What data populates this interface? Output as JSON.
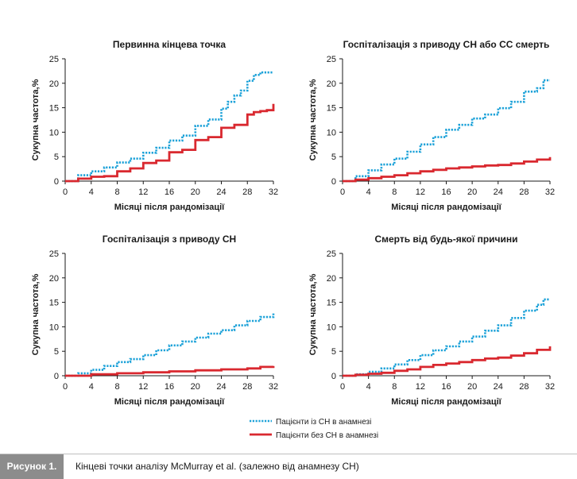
{
  "colors": {
    "with_hf": "#1ba1d8",
    "without_hf": "#d9282f",
    "axis": "#1a1a1a",
    "caption_bg": "#8c8c8c"
  },
  "legend": {
    "with_hf": "Пацієнти із СН в анамнезі",
    "without_hf": "Пацієнти без СН в анамнезі"
  },
  "caption": {
    "label": "Рисунок 1.",
    "text": "Кінцеві точки аналізу McMurray et al. (залежно від анамнезу СН)"
  },
  "chart_data": [
    {
      "type": "line",
      "title": "Первинна кінцева точка",
      "xlabel": "Місяці після рандомізації",
      "ylabel": "Сукупна частота,%",
      "xlim": [
        0,
        32
      ],
      "ylim": [
        0,
        25
      ],
      "xticks": [
        0,
        4,
        8,
        12,
        16,
        20,
        24,
        28,
        32
      ],
      "yticks": [
        0,
        5,
        10,
        15,
        20,
        25
      ],
      "series": [
        {
          "name": "Пацієнти із СН в анамнезі",
          "style": "dotted",
          "x": [
            0,
            2,
            4,
            6,
            8,
            10,
            12,
            14,
            16,
            18,
            20,
            22,
            24,
            25,
            26,
            27,
            28,
            29,
            30,
            32
          ],
          "y": [
            0,
            1.2,
            2.0,
            2.8,
            3.8,
            4.6,
            5.8,
            6.8,
            8.3,
            9.3,
            11.3,
            12.6,
            14.8,
            16.2,
            17.5,
            18.5,
            20.5,
            21.7,
            22.2,
            22.2
          ]
        },
        {
          "name": "Пацієнти без СН в анамнезі",
          "style": "solid",
          "x": [
            0,
            2,
            4,
            6,
            8,
            10,
            12,
            14,
            16,
            18,
            20,
            22,
            24,
            26,
            28,
            29,
            30,
            31,
            32
          ],
          "y": [
            0,
            0.5,
            0.9,
            1.0,
            2.0,
            2.6,
            3.7,
            4.2,
            5.9,
            6.4,
            8.4,
            9.0,
            10.9,
            11.5,
            13.6,
            14.1,
            14.3,
            14.5,
            15.8
          ]
        }
      ]
    },
    {
      "type": "line",
      "title": "Госпіталізація з приводу СН або СС смерть",
      "xlabel": "Місяці після рандомізації",
      "ylabel": "Сукупна частота,%",
      "xlim": [
        0,
        32
      ],
      "ylim": [
        0,
        25
      ],
      "xticks": [
        0,
        4,
        8,
        12,
        16,
        20,
        24,
        28,
        32
      ],
      "yticks": [
        0,
        5,
        10,
        15,
        20,
        25
      ],
      "series": [
        {
          "name": "Пацієнти із СН в анамнезі",
          "style": "dotted",
          "x": [
            0,
            2,
            4,
            6,
            8,
            10,
            12,
            14,
            16,
            18,
            20,
            22,
            24,
            26,
            28,
            30,
            31,
            32
          ],
          "y": [
            0,
            1.0,
            2.2,
            3.4,
            4.6,
            6.0,
            7.5,
            9.0,
            10.5,
            11.5,
            12.8,
            13.6,
            14.9,
            16.2,
            18.3,
            19.0,
            20.6,
            20.6
          ]
        },
        {
          "name": "Пацієнти без СН в анамнезі",
          "style": "solid",
          "x": [
            0,
            2,
            4,
            6,
            8,
            10,
            12,
            14,
            16,
            18,
            20,
            22,
            24,
            26,
            28,
            30,
            32
          ],
          "y": [
            0,
            0.3,
            0.6,
            0.9,
            1.2,
            1.6,
            2.0,
            2.3,
            2.6,
            2.8,
            3.0,
            3.2,
            3.3,
            3.6,
            4.0,
            4.4,
            4.9
          ]
        }
      ]
    },
    {
      "type": "line",
      "title": "Госпіталізація з приводу СН",
      "xlabel": "Місяці після рандомізації",
      "ylabel": "Сукупна частота,%",
      "xlim": [
        0,
        32
      ],
      "ylim": [
        0,
        25
      ],
      "xticks": [
        0,
        4,
        8,
        12,
        16,
        20,
        24,
        28,
        32
      ],
      "yticks": [
        0,
        5,
        10,
        15,
        20,
        25
      ],
      "series": [
        {
          "name": "Пацієнти із СН в анамнезі",
          "style": "dotted",
          "x": [
            0,
            2,
            4,
            6,
            8,
            10,
            12,
            14,
            16,
            18,
            20,
            22,
            24,
            26,
            28,
            30,
            32
          ],
          "y": [
            0,
            0.5,
            1.2,
            2.0,
            2.8,
            3.4,
            4.2,
            5.2,
            6.2,
            7.0,
            7.8,
            8.6,
            9.3,
            10.3,
            11.2,
            12.0,
            12.8
          ]
        },
        {
          "name": "Пацієнти без СН в анамнезі",
          "style": "solid",
          "x": [
            0,
            4,
            8,
            12,
            16,
            20,
            24,
            28,
            30,
            32
          ],
          "y": [
            0,
            0.3,
            0.5,
            0.7,
            0.9,
            1.1,
            1.3,
            1.5,
            1.8,
            2.0
          ]
        }
      ]
    },
    {
      "type": "line",
      "title": "Смерть від будь-якої причини",
      "xlabel": "Місяці після рандомізації",
      "ylabel": "Сукупна частота,%",
      "xlim": [
        0,
        32
      ],
      "ylim": [
        0,
        25
      ],
      "xticks": [
        0,
        4,
        8,
        12,
        16,
        20,
        24,
        28,
        32
      ],
      "yticks": [
        0,
        5,
        10,
        15,
        20,
        25
      ],
      "series": [
        {
          "name": "Пацієнти із СН в анамнезі",
          "style": "dotted",
          "x": [
            0,
            2,
            4,
            6,
            8,
            10,
            12,
            14,
            16,
            18,
            20,
            22,
            24,
            26,
            28,
            30,
            31,
            32
          ],
          "y": [
            0,
            0.3,
            0.8,
            1.5,
            2.3,
            3.2,
            4.2,
            5.2,
            6.0,
            7.0,
            8.0,
            9.2,
            10.3,
            11.8,
            13.3,
            14.5,
            15.6,
            15.6
          ]
        },
        {
          "name": "Пацієнти без СН в анамнезі",
          "style": "solid",
          "x": [
            0,
            2,
            4,
            6,
            8,
            10,
            12,
            14,
            16,
            18,
            20,
            22,
            24,
            26,
            28,
            30,
            32
          ],
          "y": [
            0,
            0.2,
            0.4,
            0.6,
            1.0,
            1.3,
            1.8,
            2.2,
            2.5,
            2.8,
            3.2,
            3.5,
            3.7,
            4.1,
            4.6,
            5.3,
            6.0
          ]
        }
      ]
    }
  ]
}
